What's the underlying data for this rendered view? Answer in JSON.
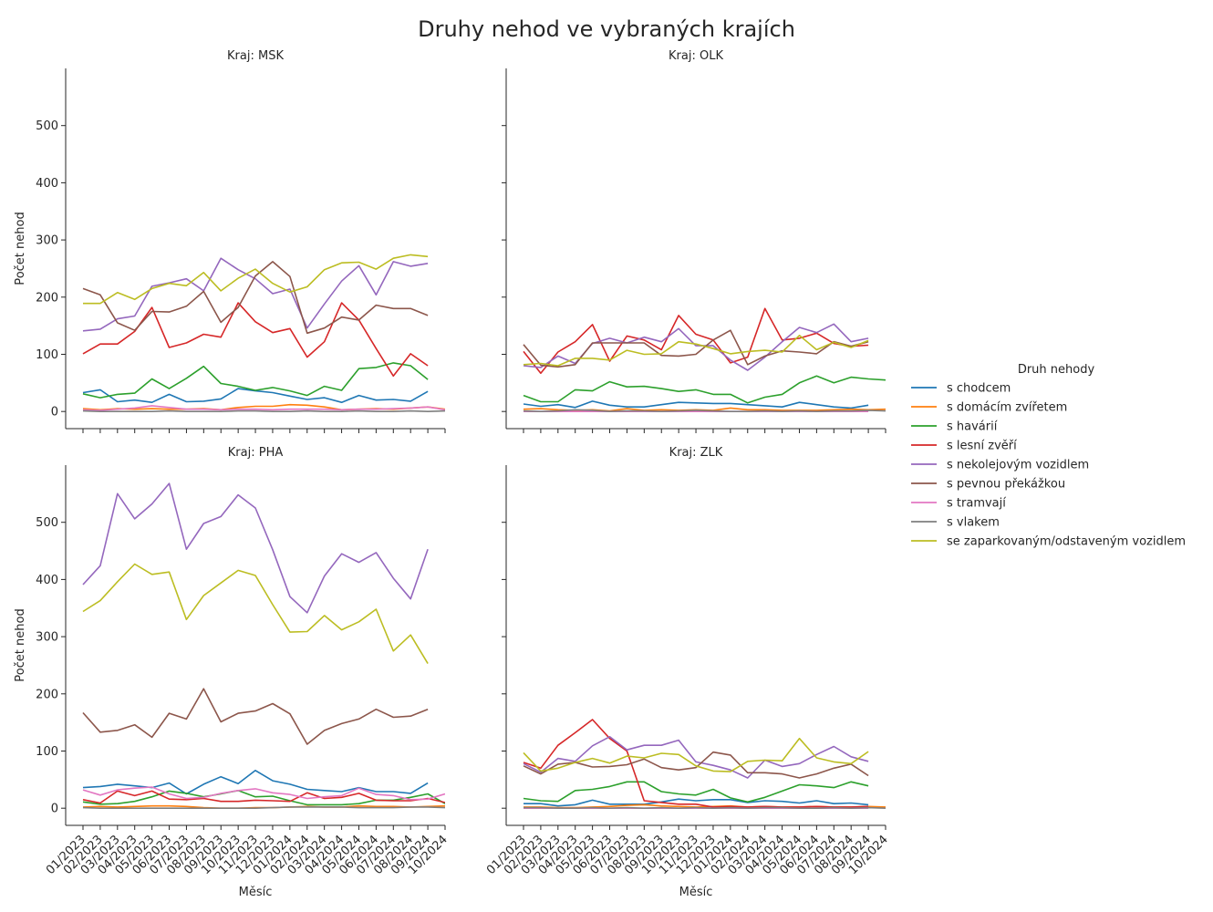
{
  "chart_data": {
    "type": "line",
    "title": "Druhy nehod ve vybraných krajích",
    "xlabel": "Měsíc",
    "ylabel": "Počet nehod",
    "ylim": [
      -30,
      600
    ],
    "yticks": [
      0,
      100,
      200,
      300,
      400,
      500
    ],
    "months": [
      "01/2023",
      "02/2023",
      "03/2023",
      "04/2023",
      "05/2023",
      "06/2023",
      "07/2023",
      "08/2023",
      "09/2023",
      "10/2023",
      "11/2023",
      "12/2023",
      "01/2024",
      "02/2024",
      "03/2024",
      "04/2024",
      "05/2024",
      "06/2024",
      "07/2024",
      "08/2024",
      "09/2024",
      "10/2024"
    ],
    "xticks": [
      "01/2023",
      "02/2023",
      "03/2023",
      "04/2023",
      "05/2023",
      "06/2023",
      "07/2023",
      "08/2023",
      "09/2023",
      "10/2023",
      "11/2023",
      "12/2023",
      "01/2024",
      "02/2024",
      "03/2024",
      "04/2024",
      "05/2024",
      "06/2024",
      "07/2024",
      "08/2024",
      "09/2024",
      "10/2024"
    ],
    "legend": {
      "title": "Druh nehody",
      "placement": "right",
      "entries": [
        {
          "name": "s chodcem",
          "color": "#1f77b4"
        },
        {
          "name": "s domácím zvířetem",
          "color": "#ff7f0e"
        },
        {
          "name": "s havárií",
          "color": "#2ca02c"
        },
        {
          "name": "s lesní zvěří",
          "color": "#d62728"
        },
        {
          "name": "s nekolejovým vozidlem",
          "color": "#9467bd"
        },
        {
          "name": "s pevnou překážkou",
          "color": "#8c564b"
        },
        {
          "name": "s tramvají",
          "color": "#e377c2"
        },
        {
          "name": "s vlakem",
          "color": "#7f7f7f"
        },
        {
          "name": "se zaparkovaným/odstaveným vozidlem",
          "color": "#bcbd22"
        }
      ]
    },
    "panels": [
      {
        "title": "Kraj: MSK",
        "series": [
          {
            "name": "s chodcem",
            "values": [
              33,
              38,
              17,
              20,
              16,
              30,
              17,
              18,
              22,
              40,
              36,
              33,
              27,
              21,
              24,
              16,
              28,
              20,
              21,
              18,
              35
            ]
          },
          {
            "name": "s domácím zvířetem",
            "values": [
              5,
              3,
              5,
              4,
              5,
              4,
              4,
              5,
              3,
              7,
              9,
              9,
              12,
              11,
              8,
              3,
              4,
              5,
              4,
              6,
              8,
              4
            ]
          },
          {
            "name": "s havárií",
            "values": [
              31,
              24,
              30,
              32,
              57,
              40,
              58,
              79,
              49,
              44,
              37,
              42,
              36,
              28,
              44,
              37,
              75,
              77,
              85,
              80,
              56
            ]
          },
          {
            "name": "s lesní zvěří",
            "values": [
              101,
              118,
              118,
              140,
              182,
              112,
              120,
              135,
              130,
              190,
              157,
              138,
              145,
              95,
              122,
              190,
              160,
              110,
              62,
              101,
              80
            ]
          },
          {
            "name": "s nekolejovým vozidlem",
            "values": [
              141,
              144,
              162,
              167,
              219,
              225,
              232,
              211,
              268,
              248,
              232,
              206,
              214,
              146,
              188,
              228,
              255,
              204,
              262,
              254,
              259
            ]
          },
          {
            "name": "s pevnou překážkou",
            "values": [
              215,
              204,
              155,
              142,
              175,
              174,
              184,
              210,
              156,
              182,
              237,
              262,
              236,
              137,
              146,
              165,
              160,
              186,
              180,
              180,
              168
            ]
          },
          {
            "name": "s tramvají",
            "values": [
              3,
              2,
              4,
              6,
              10,
              7,
              4,
              4,
              3,
              4,
              4,
              3,
              4,
              4,
              4,
              3,
              4,
              4,
              5,
              6,
              8,
              3
            ]
          },
          {
            "name": "s vlakem",
            "values": [
              1,
              0,
              0,
              0,
              0,
              1,
              0,
              0,
              0,
              1,
              1,
              0,
              0,
              1,
              0,
              0,
              1,
              0,
              0,
              1,
              0,
              1
            ]
          },
          {
            "name": "se zaparkovaným/odstaveným vozidlem",
            "values": [
              189,
              189,
              208,
              196,
              215,
              224,
              220,
              243,
              211,
              233,
              249,
              224,
              209,
              218,
              248,
              260,
              261,
              249,
              268,
              274,
              271
            ]
          }
        ]
      },
      {
        "title": "Kraj: OLK",
        "series": [
          {
            "name": "s chodcem",
            "values": [
              13,
              9,
              12,
              7,
              18,
              11,
              8,
              8,
              12,
              16,
              15,
              14,
              14,
              12,
              10,
              8,
              16,
              12,
              8,
              6,
              11
            ]
          },
          {
            "name": "s domácím zvířetem",
            "values": [
              4,
              5,
              3,
              2,
              3,
              1,
              5,
              2,
              3,
              2,
              3,
              2,
              6,
              3,
              3,
              2,
              2,
              2,
              3,
              4,
              3,
              4
            ]
          },
          {
            "name": "s havárií",
            "values": [
              28,
              17,
              17,
              38,
              36,
              52,
              43,
              44,
              40,
              35,
              38,
              30,
              30,
              15,
              25,
              30,
              50,
              62,
              50,
              60,
              57,
              55
            ]
          },
          {
            "name": "s lesní zvěří",
            "values": [
              105,
              67,
              104,
              122,
              152,
              88,
              132,
              125,
              108,
              168,
              135,
              125,
              85,
              95,
              180,
              125,
              128,
              137,
              119,
              114,
              116
            ]
          },
          {
            "name": "s nekolejovým vozidlem",
            "values": [
              80,
              77,
              97,
              84,
              119,
              128,
              120,
              130,
              122,
              145,
              115,
              115,
              90,
              72,
              95,
              122,
              147,
              138,
              153,
              122,
              128
            ]
          },
          {
            "name": "s pevnou překážkou",
            "values": [
              117,
              81,
              78,
              82,
              120,
              120,
              120,
              120,
              98,
              97,
              100,
              125,
              142,
              82,
              97,
              106,
              104,
              101,
              122,
              114,
              122
            ]
          },
          {
            "name": "s tramvají",
            "values": [
              0,
              0,
              0,
              0,
              0,
              0,
              0,
              0,
              0,
              0,
              0,
              0,
              0,
              0,
              0,
              0,
              0,
              0,
              0,
              0,
              0
            ]
          },
          {
            "name": "s vlakem",
            "values": [
              1,
              0,
              1,
              3,
              2,
              0,
              1,
              1,
              0,
              1,
              2,
              1,
              0,
              0,
              1,
              0,
              1,
              0,
              1,
              1,
              2,
              1
            ]
          },
          {
            "name": "se zaparkovaným/odstaveným vozidlem",
            "values": [
              82,
              84,
              80,
              93,
              93,
              90,
              107,
              100,
              101,
              122,
              118,
              110,
              101,
              105,
              107,
              104,
              133,
              108,
              121,
              112,
              124
            ]
          }
        ]
      },
      {
        "title": "Kraj: PHA",
        "series": [
          {
            "name": "s chodcem",
            "values": [
              36,
              38,
              42,
              39,
              36,
              44,
              25,
              42,
              55,
              43,
              66,
              48,
              42,
              33,
              31,
              29,
              36,
              29,
              29,
              26,
              44
            ]
          },
          {
            "name": "s domácím zvířetem",
            "values": [
              2,
              3,
              2,
              3,
              4,
              4,
              3,
              1,
              0,
              0,
              1,
              1,
              2,
              3,
              2,
              2,
              4,
              3,
              3,
              2,
              3,
              4
            ]
          },
          {
            "name": "s havárií",
            "values": [
              11,
              7,
              8,
              12,
              20,
              30,
              26,
              20,
              25,
              31,
              20,
              21,
              13,
              6,
              6,
              6,
              8,
              14,
              14,
              19,
              25,
              8
            ]
          },
          {
            "name": "s lesní zvěří",
            "values": [
              15,
              9,
              30,
              22,
              30,
              16,
              15,
              17,
              12,
              12,
              14,
              13,
              12,
              27,
              17,
              19,
              26,
              14,
              13,
              13,
              17,
              10
            ]
          },
          {
            "name": "s nekolejovým vozidlem",
            "values": [
              391,
              424,
              550,
              506,
              532,
              568,
              453,
              498,
              510,
              548,
              525,
              452,
              370,
              342,
              406,
              445,
              430,
              447,
              402,
              366,
              453
            ]
          },
          {
            "name": "s pevnou překážkou",
            "values": [
              167,
              133,
              136,
              146,
              124,
              166,
              156,
              209,
              151,
              166,
              170,
              183,
              165,
              112,
              136,
              148,
              156,
              173,
              159,
              161,
              173
            ]
          },
          {
            "name": "s tramvají",
            "values": [
              32,
              23,
              32,
              35,
              37,
              25,
              17,
              19,
              26,
              31,
              34,
              27,
              24,
              17,
              20,
              22,
              35,
              24,
              22,
              15,
              16,
              25
            ]
          },
          {
            "name": "s vlakem",
            "values": [
              1,
              0,
              0,
              0,
              0,
              0,
              0,
              0,
              0,
              0,
              0,
              1,
              2,
              2,
              2,
              2,
              1,
              1,
              1,
              2,
              2,
              1
            ]
          },
          {
            "name": "se zaparkovaným/odstaveným vozidlem",
            "values": [
              344,
              363,
              396,
              427,
              409,
              413,
              330,
              372,
              394,
              416,
              407,
              356,
              308,
              309,
              337,
              312,
              326,
              348,
              275,
              303,
              253
            ]
          }
        ]
      },
      {
        "title": "Kraj: ZLK",
        "series": [
          {
            "name": "s chodcem",
            "values": [
              8,
              8,
              4,
              6,
              14,
              7,
              7,
              7,
              11,
              16,
              13,
              15,
              15,
              10,
              13,
              12,
              9,
              13,
              8,
              9,
              6
            ]
          },
          {
            "name": "s domácím zvířetem",
            "values": [
              2,
              2,
              1,
              1,
              2,
              3,
              5,
              6,
              4,
              3,
              2,
              3,
              4,
              2,
              3,
              2,
              2,
              3,
              2,
              2,
              3,
              2
            ]
          },
          {
            "name": "s havárií",
            "values": [
              17,
              13,
              12,
              31,
              33,
              38,
              46,
              46,
              29,
              25,
              23,
              33,
              18,
              11,
              19,
              30,
              41,
              39,
              36,
              46,
              39
            ]
          },
          {
            "name": "s lesní zvěří",
            "values": [
              80,
              70,
              110,
              132,
              155,
              122,
              100,
              13,
              10,
              7,
              7,
              2,
              3,
              2,
              3,
              2,
              2,
              3,
              2,
              2,
              3
            ]
          },
          {
            "name": "s nekolejovým vozidlem",
            "values": [
              78,
              63,
              87,
              82,
              109,
              125,
              102,
              110,
              110,
              119,
              81,
              75,
              67,
              53,
              84,
              73,
              78,
              94,
              108,
              90,
              82
            ]
          },
          {
            "name": "s pevnou překážkou",
            "values": [
              74,
              60,
              77,
              80,
              72,
              73,
              76,
              86,
              71,
              67,
              71,
              98,
              93,
              62,
              62,
              60,
              53,
              60,
              70,
              77,
              57
            ]
          },
          {
            "name": "s tramvají",
            "values": [
              0,
              0,
              0,
              0,
              0,
              0,
              0,
              0,
              0,
              0,
              0,
              0,
              0,
              0,
              0,
              0,
              0,
              0,
              0,
              0,
              0
            ]
          },
          {
            "name": "s vlakem",
            "values": [
              1,
              1,
              0,
              0,
              1,
              0,
              1,
              0,
              1,
              0,
              1,
              0,
              1,
              0,
              1,
              1,
              0,
              0,
              1,
              0,
              1,
              0
            ]
          },
          {
            "name": "se zaparkovaným/odstaveným vozidlem",
            "values": [
              97,
              65,
              70,
              80,
              87,
              79,
              91,
              88,
              96,
              94,
              74,
              65,
              64,
              82,
              84,
              83,
              122,
              88,
              81,
              78,
              99
            ]
          }
        ]
      }
    ]
  }
}
